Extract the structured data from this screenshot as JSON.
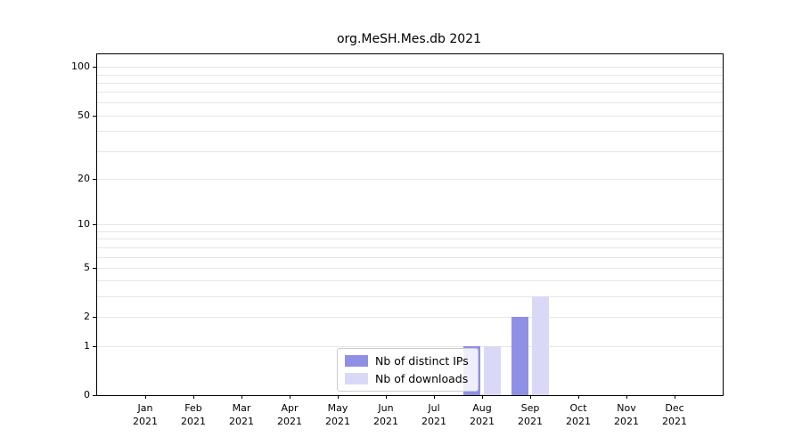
{
  "title": "org.MeSH.Mes.db 2021",
  "chart_data": {
    "type": "bar",
    "title": "org.MeSH.Mes.db 2021",
    "x_tick_months": [
      "Jan",
      "Feb",
      "Mar",
      "Apr",
      "May",
      "Jun",
      "Jul",
      "Aug",
      "Sep",
      "Oct",
      "Nov",
      "Dec"
    ],
    "x_tick_year": "2021",
    "series": [
      {
        "name": "Nb of distinct IPs",
        "color": "#8f8fe6",
        "values": [
          0,
          0,
          0,
          0,
          0,
          0,
          0,
          1,
          2,
          0,
          0,
          0
        ]
      },
      {
        "name": "Nb of downloads",
        "color": "#d9d9f7",
        "values": [
          0,
          0,
          0,
          0,
          0,
          0,
          0,
          1,
          3,
          0,
          0,
          0
        ]
      }
    ],
    "yticks": [
      0,
      1,
      2,
      5,
      10,
      20,
      50,
      100
    ],
    "ylim": [
      0,
      120
    ],
    "yscale": "log1p",
    "grid": "horizontal-minor",
    "legend_position": "bottom-center",
    "colors": {
      "grid": "#e6e6e6",
      "axis": "#000000",
      "legend_border": "#cccccc",
      "background": "#ffffff"
    }
  }
}
